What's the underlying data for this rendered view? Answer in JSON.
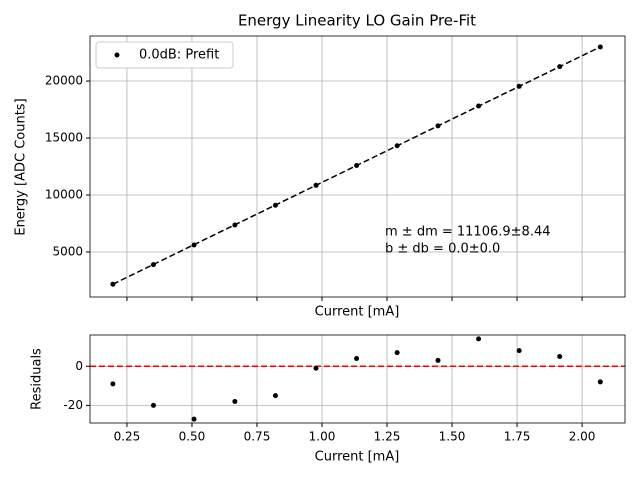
{
  "chart_data": [
    {
      "type": "scatter",
      "title": "Energy Linearity LO Gain Pre-Fit",
      "x_label": "Current [mA]",
      "y_label": "Energy [ADC Counts]",
      "x": [
        0.196,
        0.352,
        0.508,
        0.665,
        0.821,
        0.977,
        1.133,
        1.289,
        1.446,
        1.602,
        1.758,
        1.914,
        2.07
      ],
      "series": [
        {
          "name": "0.0dB: Prefit",
          "color": "#000000",
          "values": [
            2168,
            3890,
            5615,
            7368,
            9104,
            10850,
            12588,
            14324,
            16064,
            17808,
            19534,
            21264,
            22983
          ]
        }
      ],
      "fit_line": {
        "x": [
          0.196,
          2.07
        ],
        "values": [
          2177,
          22991
        ],
        "color": "#000000"
      },
      "annotations": [
        "m ± dm = 11106.9±8.44",
        "b ± db = 0.0±0.0"
      ],
      "xlim": [
        0.108,
        2.165
      ],
      "ylim": [
        1053,
        23947
      ],
      "yticks": [
        5000,
        10000,
        15000,
        20000
      ],
      "grid": true,
      "legend": "upper left"
    },
    {
      "type": "scatter",
      "x_label": "Current [mA]",
      "y_label": "Residuals",
      "x": [
        0.196,
        0.352,
        0.508,
        0.665,
        0.821,
        0.977,
        1.133,
        1.289,
        1.446,
        1.602,
        1.758,
        1.914,
        2.07
      ],
      "series": [
        {
          "color": "#000000",
          "values": [
            -9,
            -20,
            -27,
            -18,
            -15,
            -1,
            4,
            7,
            3,
            14,
            8,
            5,
            -8
          ]
        }
      ],
      "hline": {
        "value": 0,
        "color": "#ff0000"
      },
      "xlim": [
        0.108,
        2.165
      ],
      "ylim": [
        -29,
        16
      ],
      "xticks": [
        0.25,
        {
          "value": 0.5,
          "label": "0.50"
        },
        0.75,
        {
          "value": 1,
          "label": "1.00"
        },
        1.25,
        {
          "value": 1.5,
          "label": "1.50"
        },
        1.75,
        {
          "value": 2,
          "label": "2.00"
        }
      ],
      "yticks": [
        -20,
        0
      ],
      "grid": true
    }
  ]
}
